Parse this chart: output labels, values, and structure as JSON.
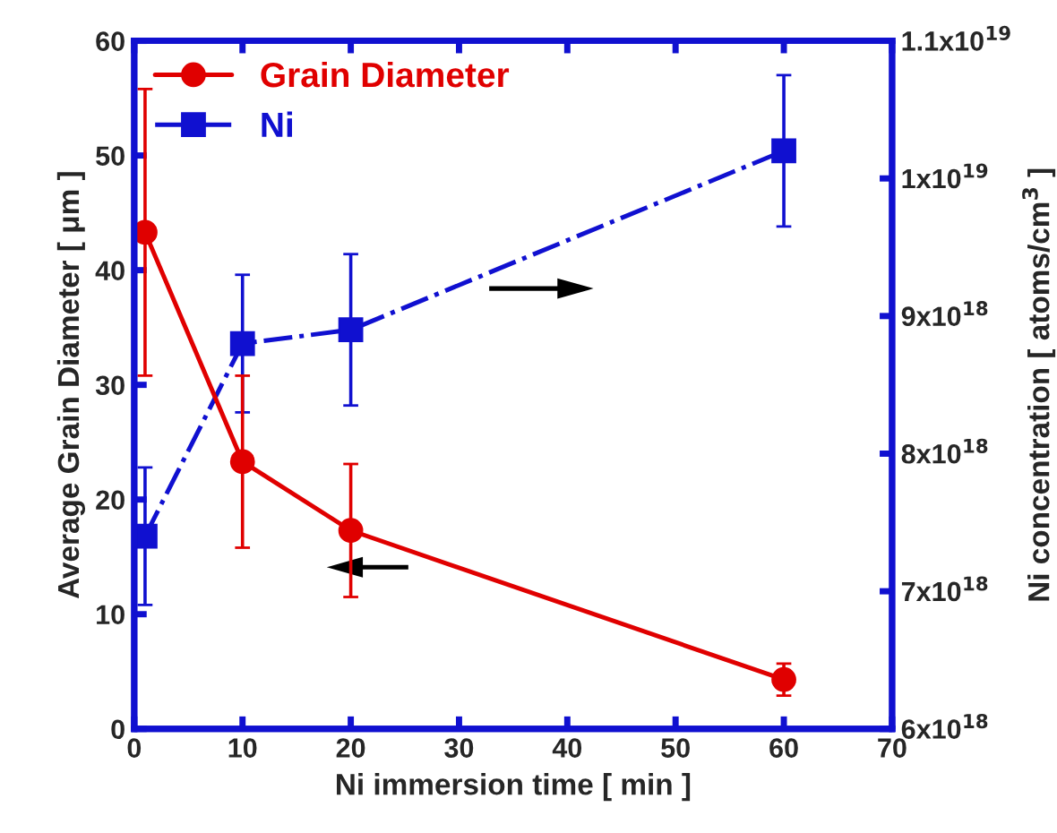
{
  "chart_data": {
    "type": "line",
    "xlabel": "Ni immersion time [ min ]",
    "ylabel": "Average Grain Diameter [ μm ]",
    "y2label": "Ni concentration [ atoms/cm$^{3}$ ]",
    "xlim": [
      0,
      70
    ],
    "xticks": [
      0,
      10,
      20,
      30,
      40,
      50,
      60,
      70
    ],
    "ylim": [
      0,
      60
    ],
    "yticks": [
      0,
      10,
      20,
      30,
      40,
      50,
      60
    ],
    "y2lim": [
      6e+18,
      1.1e+19
    ],
    "y2ticks": [
      {
        "value": 6e+18,
        "label": "6x10$^{18}$"
      },
      {
        "value": 7e+18,
        "label": "7x10$^{18}$"
      },
      {
        "value": 8e+18,
        "label": "8x10$^{18}$"
      },
      {
        "value": 9e+18,
        "label": "9x10$^{18}$"
      },
      {
        "value": 1e+19,
        "label": "1x10$^{19}$"
      },
      {
        "value": 1.1e+19,
        "label": "1.1x10$^{19}$"
      }
    ],
    "grid": false,
    "legend": "top left",
    "series": [
      {
        "name": "Grain Diameter",
        "color": "#e00000",
        "marker": "circle",
        "line_style": "solid",
        "x": [
          1,
          10,
          20,
          60
        ],
        "values": [
          43.3,
          23.3,
          17.3,
          4.3
        ],
        "errors": [
          12.5,
          7.5,
          5.8,
          1.4
        ]
      },
      {
        "name": "Ni",
        "color": "#1010d0",
        "marker": "square",
        "line_style": "dashed",
        "axis": "y2",
        "x": [
          1,
          10,
          20,
          60
        ],
        "values": [
          7.4e+18,
          8.8e+18,
          8.9e+18,
          1.02e+19
        ],
        "errors": [
          5e+17,
          5e+17,
          5.5e+17,
          5.5e+17
        ]
      }
    ]
  }
}
